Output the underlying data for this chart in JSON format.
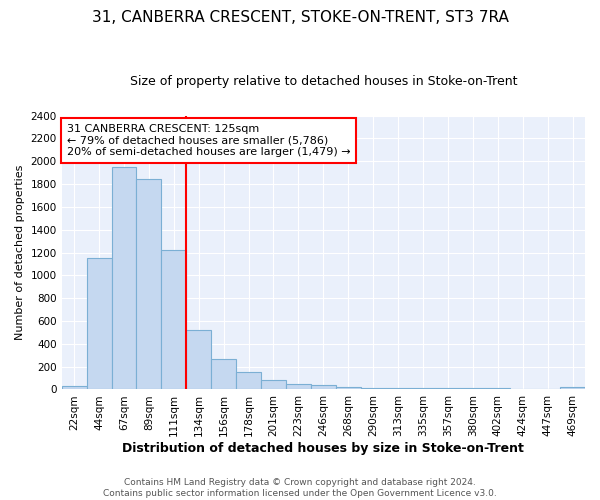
{
  "title": "31, CANBERRA CRESCENT, STOKE-ON-TRENT, ST3 7RA",
  "subtitle": "Size of property relative to detached houses in Stoke-on-Trent",
  "xlabel": "Distribution of detached houses by size in Stoke-on-Trent",
  "ylabel": "Number of detached properties",
  "bar_labels": [
    "22sqm",
    "44sqm",
    "67sqm",
    "89sqm",
    "111sqm",
    "134sqm",
    "156sqm",
    "178sqm",
    "201sqm",
    "223sqm",
    "246sqm",
    "268sqm",
    "290sqm",
    "313sqm",
    "335sqm",
    "357sqm",
    "380sqm",
    "402sqm",
    "424sqm",
    "447sqm",
    "469sqm"
  ],
  "bar_values": [
    30,
    1150,
    1950,
    1840,
    1220,
    520,
    265,
    155,
    85,
    50,
    40,
    20,
    15,
    15,
    12,
    12,
    12,
    12,
    5,
    5,
    18
  ],
  "bar_color": "#c5d8f0",
  "bar_edgecolor": "#7bafd4",
  "vline_color": "red",
  "annotation_text": "31 CANBERRA CRESCENT: 125sqm\n← 79% of detached houses are smaller (5,786)\n20% of semi-detached houses are larger (1,479) →",
  "annotation_box_edgecolor": "red",
  "footer_line1": "Contains HM Land Registry data © Crown copyright and database right 2024.",
  "footer_line2": "Contains public sector information licensed under the Open Government Licence v3.0.",
  "ylim": [
    0,
    2400
  ],
  "bg_color": "#eaf0fb",
  "fig_bg_color": "#ffffff",
  "title_fontsize": 11,
  "subtitle_fontsize": 9,
  "xlabel_fontsize": 9,
  "ylabel_fontsize": 8,
  "tick_fontsize": 7.5,
  "footer_fontsize": 6.5
}
